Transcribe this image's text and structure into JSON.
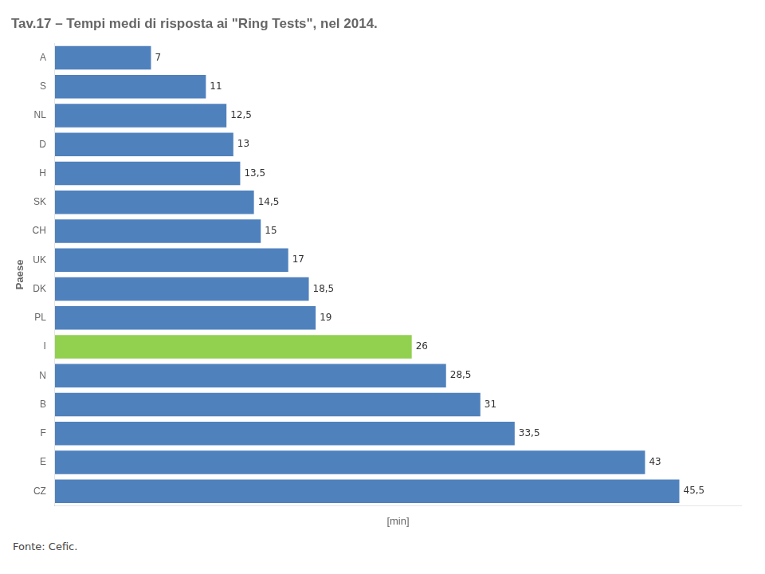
{
  "chart_data": {
    "type": "bar",
    "orientation": "horizontal",
    "title": "Tav.17 – Tempi medi di risposta ai \"Ring Tests\", nel 2014.",
    "x_label": "[min]",
    "y_label": "Paese",
    "annotations": [
      "Fonte: Cefic."
    ],
    "categories": [
      "A",
      "S",
      "NL",
      "D",
      "H",
      "SK",
      "CH",
      "UK",
      "DK",
      "PL",
      "I",
      "N",
      "B",
      "F",
      "E",
      "CZ"
    ],
    "values": [
      7,
      11,
      12.5,
      13,
      13.5,
      14.5,
      15,
      17,
      18.5,
      19,
      26,
      28.5,
      31,
      33.5,
      43,
      45.5
    ],
    "value_labels": [
      "7",
      "11",
      "12,5",
      "13",
      "13,5",
      "14,5",
      "15",
      "17",
      "18,5",
      "19",
      "26",
      "28,5",
      "31",
      "33,5",
      "43",
      "45,5"
    ],
    "colors": [
      "#4f81bd",
      "#4f81bd",
      "#4f81bd",
      "#4f81bd",
      "#4f81bd",
      "#4f81bd",
      "#4f81bd",
      "#4f81bd",
      "#4f81bd",
      "#4f81bd",
      "#92d050",
      "#4f81bd",
      "#4f81bd",
      "#4f81bd",
      "#4f81bd",
      "#4f81bd"
    ],
    "xlim": [
      0,
      50
    ],
    "xticks": [],
    "tick_labels": "y",
    "data_labels": true,
    "grid": false
  }
}
